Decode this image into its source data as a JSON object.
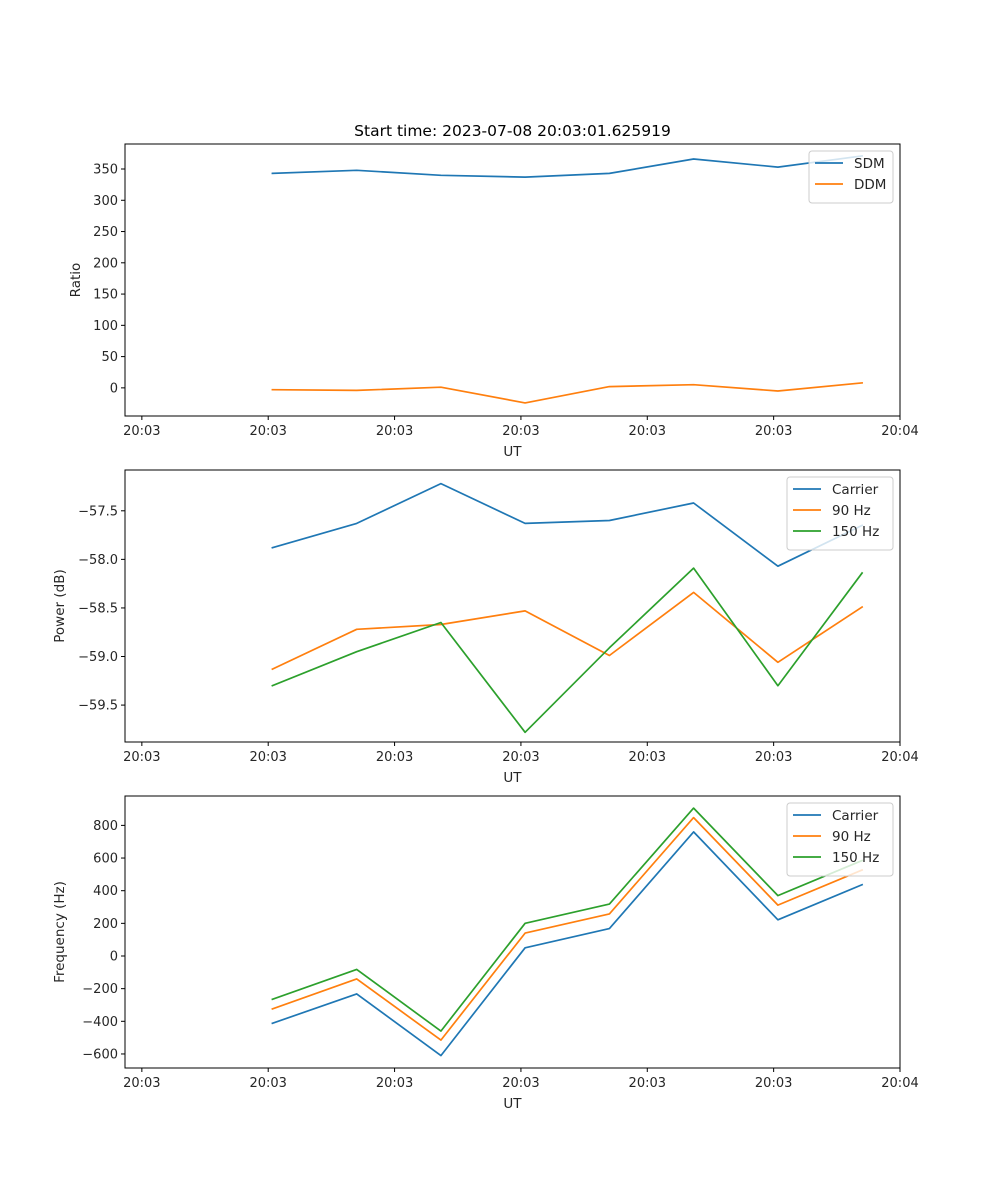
{
  "figure_title": "Start time: 2023-07-08 20:03:01.625919",
  "colors": {
    "blue": "#1f77b4",
    "orange": "#ff7f0e",
    "green": "#2ca02c"
  },
  "chart_data": [
    {
      "type": "line",
      "title": "Start time: 2023-07-08 20:03:01.625919",
      "xlabel": "UT",
      "ylabel": "Ratio",
      "x": [
        1,
        2,
        3,
        4,
        5,
        6,
        7,
        8
      ],
      "xlim": [
        -0.75,
        8.45
      ],
      "xticks": [
        -0.55,
        0.95,
        2.45,
        3.95,
        5.45,
        6.95,
        8.45
      ],
      "xtick_labels": [
        "20:03",
        "20:03",
        "20:03",
        "20:03",
        "20:03",
        "20:03",
        "20:04"
      ],
      "ylim": [
        -45,
        390
      ],
      "yticks": [
        0,
        50,
        100,
        150,
        200,
        250,
        300,
        350
      ],
      "ytick_labels": [
        "0",
        "50",
        "100",
        "150",
        "200",
        "250",
        "300",
        "350"
      ],
      "legend_position": "upper right",
      "series": [
        {
          "name": "SDM",
          "color": "#1f77b4",
          "values": [
            343,
            348,
            340,
            337,
            343,
            366,
            353,
            371
          ]
        },
        {
          "name": "DDM",
          "color": "#ff7f0e",
          "values": [
            -3,
            -4,
            1,
            -24,
            2,
            5,
            -5,
            8
          ]
        }
      ]
    },
    {
      "type": "line",
      "xlabel": "UT",
      "ylabel": "Power (dB)",
      "x": [
        1,
        2,
        3,
        4,
        5,
        6,
        7,
        8
      ],
      "xlim": [
        -0.75,
        8.45
      ],
      "xticks": [
        -0.55,
        0.95,
        2.45,
        3.95,
        5.45,
        6.95,
        8.45
      ],
      "xtick_labels": [
        "20:03",
        "20:03",
        "20:03",
        "20:03",
        "20:03",
        "20:03",
        "20:04"
      ],
      "ylim": [
        -59.88,
        -57.08
      ],
      "yticks": [
        -59.5,
        -59.0,
        -58.5,
        -58.0,
        -57.5
      ],
      "ytick_labels": [
        "−59.5",
        "−59.0",
        "−58.5",
        "−58.0",
        "−57.5"
      ],
      "legend_position": "upper right",
      "series": [
        {
          "name": "Carrier",
          "color": "#1f77b4",
          "values": [
            -57.88,
            -57.63,
            -57.22,
            -57.63,
            -57.6,
            -57.42,
            -58.07,
            -57.65
          ]
        },
        {
          "name": "90 Hz",
          "color": "#ff7f0e",
          "values": [
            -59.13,
            -58.72,
            -58.67,
            -58.53,
            -58.99,
            -58.34,
            -59.06,
            -58.49
          ]
        },
        {
          "name": "150 Hz",
          "color": "#2ca02c",
          "values": [
            -59.3,
            -58.95,
            -58.65,
            -59.78,
            -58.91,
            -58.09,
            -59.3,
            -58.14
          ]
        }
      ]
    },
    {
      "type": "line",
      "xlabel": "UT",
      "ylabel": "Frequency (Hz)",
      "x": [
        1,
        2,
        3,
        4,
        5,
        6,
        7,
        8
      ],
      "xlim": [
        -0.75,
        8.45
      ],
      "xticks": [
        -0.55,
        0.95,
        2.45,
        3.95,
        5.45,
        6.95,
        8.45
      ],
      "xtick_labels": [
        "20:03",
        "20:03",
        "20:03",
        "20:03",
        "20:03",
        "20:03",
        "20:04"
      ],
      "ylim": [
        -686,
        980
      ],
      "yticks": [
        -600,
        -400,
        -200,
        0,
        200,
        400,
        600,
        800
      ],
      "ytick_labels": [
        "−600",
        "−400",
        "−200",
        "0",
        "200",
        "400",
        "600",
        "800"
      ],
      "legend_position": "upper right",
      "series": [
        {
          "name": "Carrier",
          "color": "#1f77b4",
          "values": [
            -412,
            -232,
            -610,
            50,
            168,
            760,
            222,
            437
          ]
        },
        {
          "name": "90 Hz",
          "color": "#ff7f0e",
          "values": [
            -324,
            -140,
            -515,
            140,
            258,
            848,
            312,
            527
          ]
        },
        {
          "name": "150 Hz",
          "color": "#2ca02c",
          "values": [
            -265,
            -82,
            -460,
            200,
            318,
            906,
            370,
            585
          ]
        }
      ]
    }
  ]
}
